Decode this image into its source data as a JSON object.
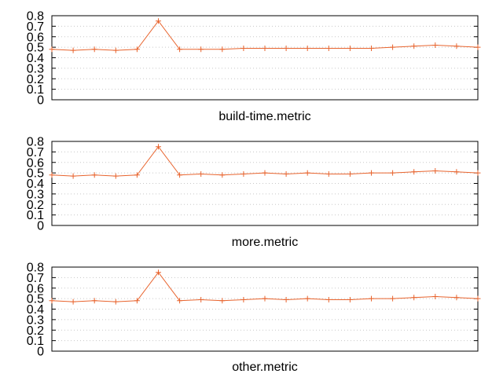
{
  "colors": {
    "series": "#e8642e",
    "axis": "#000000",
    "grid": "#c8c8c8",
    "background": "#ffffff"
  },
  "chart_data": [
    {
      "type": "line",
      "title": "",
      "xlabel": "build-time.metric",
      "ylabel": "",
      "ylim": [
        0,
        0.8
      ],
      "y_ticks": [
        "0",
        "0.1",
        "0.2",
        "0.3",
        "0.4",
        "0.5",
        "0.6",
        "0.7",
        "0.8"
      ],
      "grid": "horizontal dotted",
      "marker": "plus",
      "x": [
        0,
        1,
        2,
        3,
        4,
        5,
        6,
        7,
        8,
        9,
        10,
        11,
        12,
        13,
        14,
        15,
        16,
        17,
        18,
        19,
        20
      ],
      "series": [
        {
          "values": [
            0.48,
            0.47,
            0.48,
            0.47,
            0.48,
            0.75,
            0.48,
            0.48,
            0.48,
            0.49,
            0.49,
            0.49,
            0.49,
            0.49,
            0.49,
            0.49,
            0.5,
            0.51,
            0.52,
            0.51,
            0.5
          ]
        }
      ]
    },
    {
      "type": "line",
      "title": "",
      "xlabel": "more.metric",
      "ylabel": "",
      "ylim": [
        0,
        0.8
      ],
      "y_ticks": [
        "0",
        "0.1",
        "0.2",
        "0.3",
        "0.4",
        "0.5",
        "0.6",
        "0.7",
        "0.8"
      ],
      "grid": "horizontal dotted",
      "marker": "plus",
      "x": [
        0,
        1,
        2,
        3,
        4,
        5,
        6,
        7,
        8,
        9,
        10,
        11,
        12,
        13,
        14,
        15,
        16,
        17,
        18,
        19,
        20
      ],
      "series": [
        {
          "values": [
            0.48,
            0.47,
            0.48,
            0.47,
            0.48,
            0.75,
            0.48,
            0.49,
            0.48,
            0.49,
            0.5,
            0.49,
            0.5,
            0.49,
            0.49,
            0.5,
            0.5,
            0.51,
            0.52,
            0.51,
            0.5
          ]
        }
      ]
    },
    {
      "type": "line",
      "title": "",
      "xlabel": "other.metric",
      "ylabel": "",
      "ylim": [
        0,
        0.8
      ],
      "y_ticks": [
        "0",
        "0.1",
        "0.2",
        "0.3",
        "0.4",
        "0.5",
        "0.6",
        "0.7",
        "0.8"
      ],
      "grid": "horizontal dotted",
      "marker": "plus",
      "x": [
        0,
        1,
        2,
        3,
        4,
        5,
        6,
        7,
        8,
        9,
        10,
        11,
        12,
        13,
        14,
        15,
        16,
        17,
        18,
        19,
        20
      ],
      "series": [
        {
          "values": [
            0.48,
            0.47,
            0.48,
            0.47,
            0.48,
            0.75,
            0.48,
            0.49,
            0.48,
            0.49,
            0.5,
            0.49,
            0.5,
            0.49,
            0.49,
            0.5,
            0.5,
            0.51,
            0.52,
            0.51,
            0.5
          ]
        }
      ]
    }
  ]
}
